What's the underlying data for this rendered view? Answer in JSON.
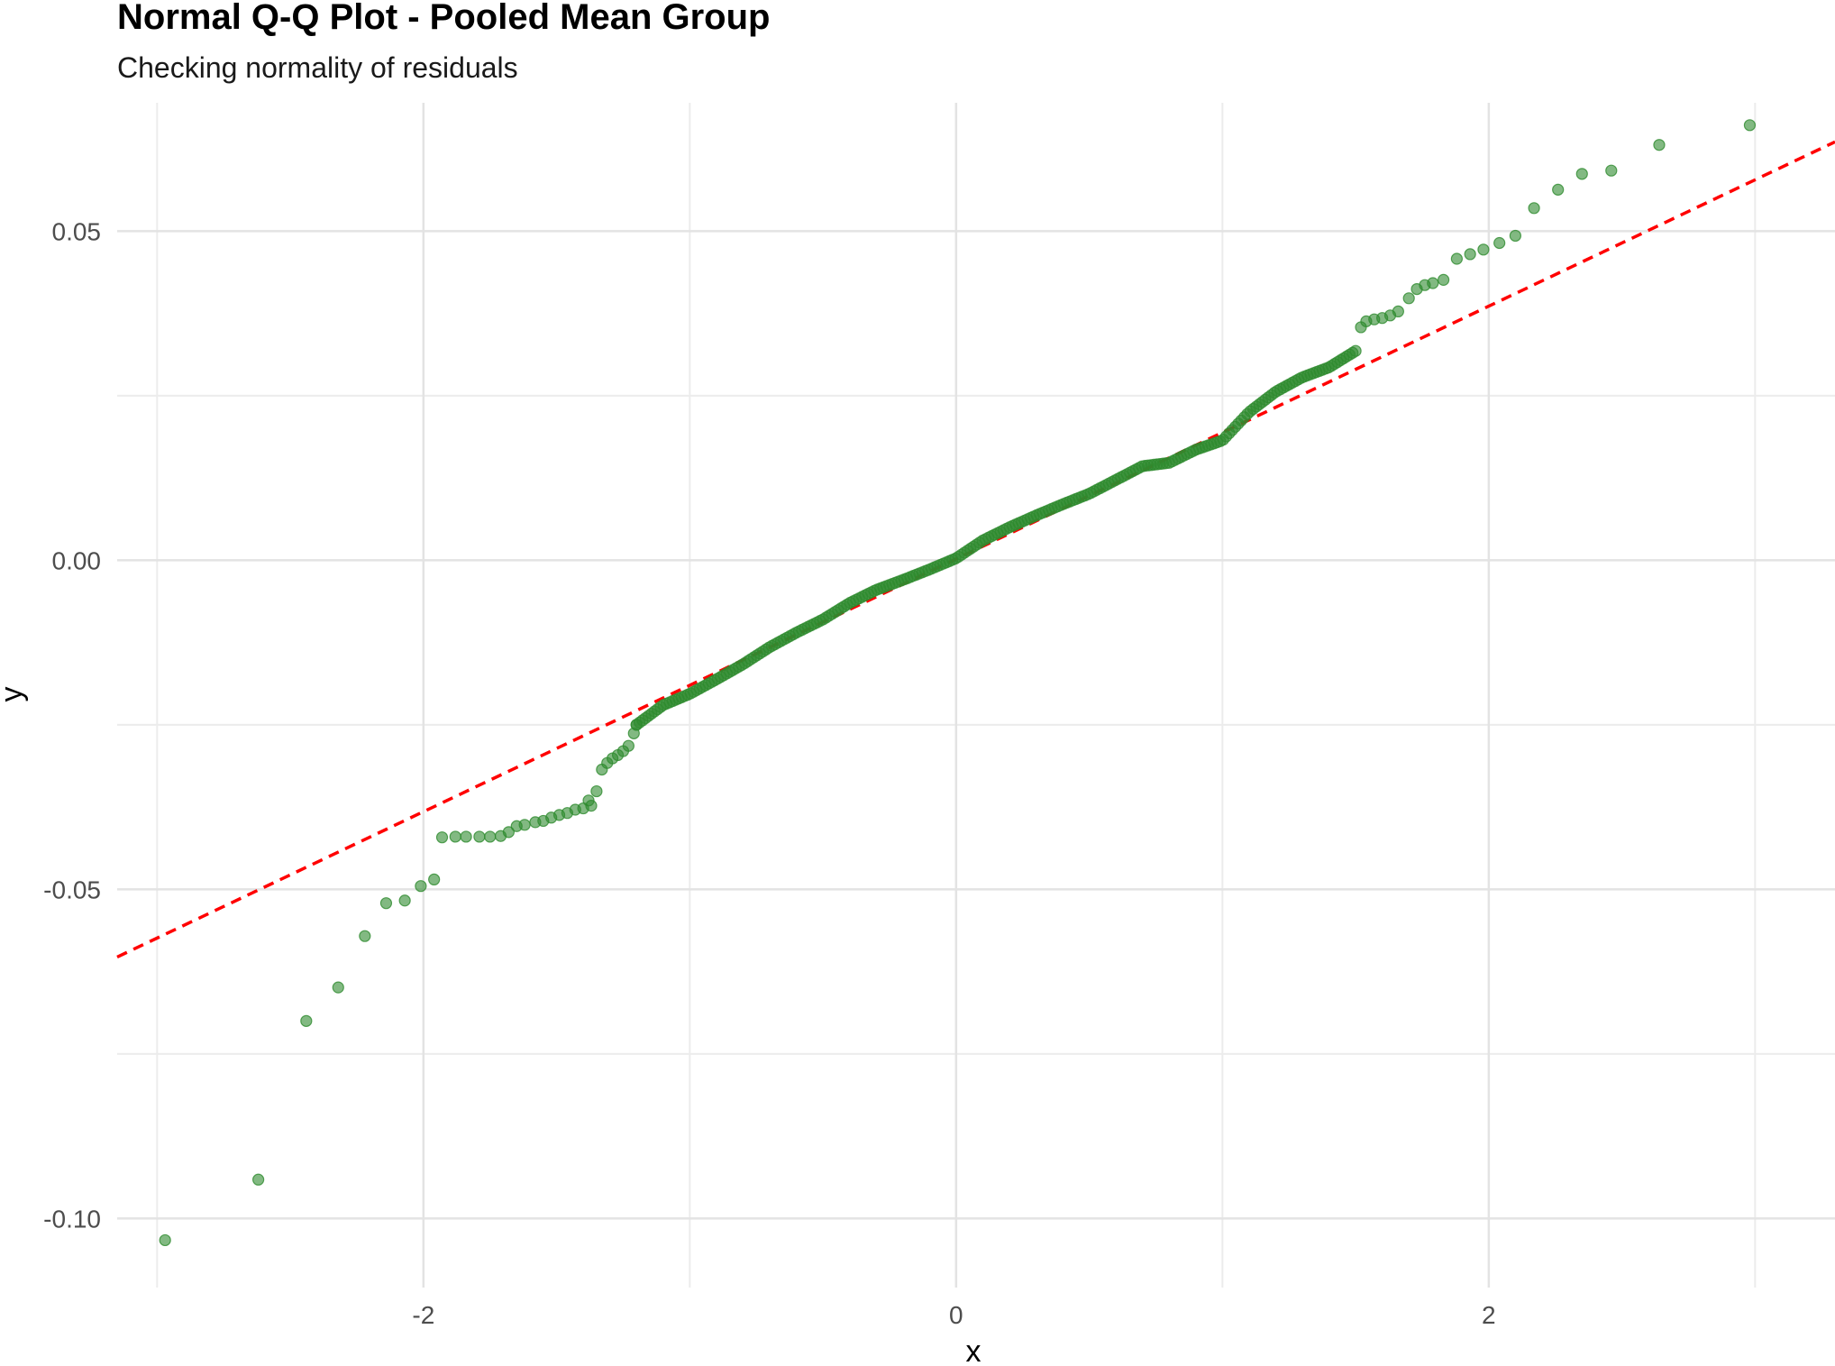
{
  "chart_data": {
    "type": "scatter",
    "title": "Normal Q-Q Plot - Pooled Mean Group",
    "subtitle": "Checking normality of residuals",
    "xlabel": "x",
    "ylabel": "y",
    "xlim": [
      -3.15,
      3.3
    ],
    "ylim": [
      -0.1105,
      0.0695
    ],
    "x_ticks": [
      -2,
      0,
      2
    ],
    "x_tick_labels": [
      "-2",
      "0",
      "2"
    ],
    "y_ticks": [
      -0.1,
      -0.05,
      0.0,
      0.05
    ],
    "y_tick_labels": [
      "-0.10",
      "-0.05",
      "0.00",
      "0.05"
    ],
    "x_minor_gridlines": [
      -3,
      -1,
      1,
      3
    ],
    "y_minor_gridlines": [
      -0.075,
      -0.025,
      0.025
    ],
    "grid": true,
    "point_color": "#2e8b2e",
    "point_opacity": 0.6,
    "reference_line": {
      "intercept": 0.0002,
      "slope": 0.0192,
      "style": "dashed",
      "color": "#ff0000"
    },
    "tail_points": [
      [
        -2.97,
        -0.1033
      ],
      [
        -2.62,
        -0.0941
      ],
      [
        -2.44,
        -0.07
      ],
      [
        -2.32,
        -0.0649
      ],
      [
        -2.22,
        -0.0571
      ],
      [
        -2.14,
        -0.0521
      ],
      [
        -2.07,
        -0.0517
      ],
      [
        -2.01,
        -0.0495
      ],
      [
        -1.96,
        -0.0485
      ],
      [
        -1.93,
        -0.0421
      ],
      [
        -1.88,
        -0.042
      ],
      [
        -1.84,
        -0.042
      ],
      [
        -1.79,
        -0.042
      ],
      [
        -1.75,
        -0.042
      ],
      [
        -1.71,
        -0.0419
      ],
      [
        -1.68,
        -0.0413
      ],
      [
        -1.65,
        -0.0404
      ],
      [
        -1.62,
        -0.0402
      ],
      [
        -1.58,
        -0.0398
      ],
      [
        -1.55,
        -0.0396
      ],
      [
        -1.52,
        -0.0391
      ],
      [
        -1.49,
        -0.0387
      ],
      [
        -1.46,
        -0.0384
      ],
      [
        -1.43,
        -0.0379
      ],
      [
        -1.4,
        -0.0377
      ],
      [
        -1.37,
        -0.0373
      ],
      [
        -1.35,
        -0.0351
      ],
      [
        -1.38,
        -0.0365
      ],
      [
        -1.33,
        -0.0318
      ],
      [
        -1.31,
        -0.0308
      ],
      [
        -1.29,
        -0.0301
      ],
      [
        -1.27,
        -0.0296
      ],
      [
        -1.25,
        -0.029
      ],
      [
        -1.23,
        -0.0282
      ],
      [
        -1.21,
        -0.0263
      ],
      [
        -1.2,
        -0.025
      ],
      [
        1.52,
        0.0354
      ],
      [
        1.54,
        0.0363
      ],
      [
        1.57,
        0.0366
      ],
      [
        1.6,
        0.0368
      ],
      [
        1.63,
        0.0372
      ],
      [
        1.66,
        0.0378
      ],
      [
        1.7,
        0.0398
      ],
      [
        1.73,
        0.0412
      ],
      [
        1.76,
        0.0418
      ],
      [
        1.79,
        0.0421
      ],
      [
        1.83,
        0.0426
      ],
      [
        1.88,
        0.0458
      ],
      [
        1.93,
        0.0465
      ],
      [
        1.98,
        0.0472
      ],
      [
        2.04,
        0.0482
      ],
      [
        2.1,
        0.0493
      ],
      [
        2.17,
        0.0535
      ],
      [
        2.26,
        0.0563
      ],
      [
        2.35,
        0.0587
      ],
      [
        2.46,
        0.0592
      ],
      [
        2.64,
        0.0631
      ],
      [
        2.98,
        0.0661
      ]
    ],
    "body_curve": [
      [
        -1.2,
        -0.025
      ],
      [
        -1.1,
        -0.022
      ],
      [
        -1.0,
        -0.0203
      ],
      [
        -0.9,
        -0.0181
      ],
      [
        -0.8,
        -0.0158
      ],
      [
        -0.7,
        -0.0132
      ],
      [
        -0.6,
        -0.011
      ],
      [
        -0.5,
        -0.009
      ],
      [
        -0.4,
        -0.0065
      ],
      [
        -0.3,
        -0.0045
      ],
      [
        -0.2,
        -0.003
      ],
      [
        -0.1,
        -0.0014
      ],
      [
        0.0,
        0.0003
      ],
      [
        0.1,
        0.003
      ],
      [
        0.2,
        0.005
      ],
      [
        0.3,
        0.0068
      ],
      [
        0.4,
        0.0085
      ],
      [
        0.5,
        0.0101
      ],
      [
        0.6,
        0.0122
      ],
      [
        0.7,
        0.0143
      ],
      [
        0.8,
        0.0148
      ],
      [
        0.9,
        0.0168
      ],
      [
        1.0,
        0.0182
      ],
      [
        1.1,
        0.0225
      ],
      [
        1.2,
        0.0256
      ],
      [
        1.3,
        0.0278
      ],
      [
        1.4,
        0.0293
      ],
      [
        1.5,
        0.0318
      ]
    ],
    "body_point_count": 240
  }
}
